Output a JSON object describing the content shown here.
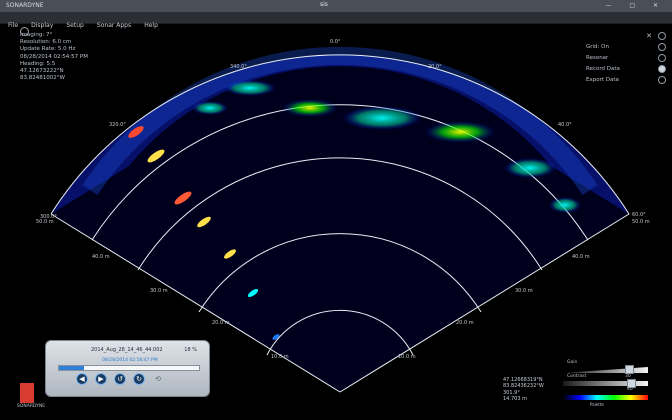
{
  "window": {
    "title": "sis",
    "system": "SONARDYNE",
    "controls": "— □ ✕"
  },
  "menu": [
    "File",
    "Display",
    "Setup",
    "Sonar Apps",
    "Help"
  ],
  "status": {
    "imaging": "Imaging: 7°",
    "resolution": "Resolution: 6.0 cm",
    "update_rate": "Update Rate: 5.0 Hz",
    "date_time": "08/28/2014 02:54:57 PM",
    "heading": "Heading: 5.5",
    "latitude": "47.12673222°N",
    "longitude": "83.82481002°W"
  },
  "right_tools": [
    {
      "label": "Grid: On",
      "icon": "grid-icon"
    },
    {
      "label": "Resonar",
      "icon": "resonar-icon"
    },
    {
      "label": "Record Data",
      "icon": "record-icon"
    },
    {
      "label": "Export Data",
      "icon": "export-icon"
    }
  ],
  "polar_labels": {
    "angles": [
      "0.0°",
      "340.0°",
      "20.0°",
      "320.0°",
      "40.0°",
      "300.0°",
      "60.0°"
    ],
    "ranges_left": [
      "50.0 m",
      "40.0 m",
      "30.0 m",
      "20.0 m",
      "10.0 m"
    ],
    "ranges_right": [
      "50.0 m",
      "40.0 m",
      "30.0 m",
      "20.0 m",
      "10.0 m"
    ]
  },
  "player": {
    "title": "2014_Aug_28_14_46_44.002",
    "percent": "18 %",
    "progress": 0.18,
    "timestamp": "08/28/2014 02:56:47 PM",
    "buttons": [
      "play-back",
      "play",
      "rewind",
      "skip",
      "repeat"
    ]
  },
  "gps": {
    "lat": "47.12668319°N",
    "lon": "83.82436232°W",
    "heading": "301.9°",
    "range": "14.703 m"
  },
  "controls": {
    "gain_label": "Gain",
    "gain_value": "30",
    "contrast_label": "Contrast",
    "contrast_value": "40",
    "palette_label": "Palette"
  },
  "brand_label": "SONARDYNE"
}
